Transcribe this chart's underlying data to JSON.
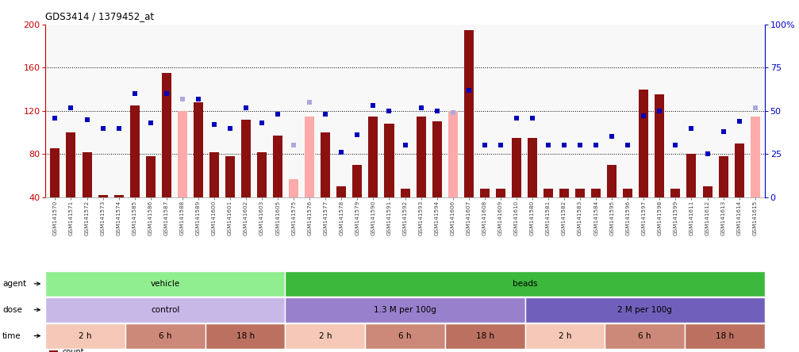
{
  "title": "GDS3414 / 1379452_at",
  "samples": [
    "GSM141570",
    "GSM141571",
    "GSM141572",
    "GSM141573",
    "GSM141574",
    "GSM141585",
    "GSM141586",
    "GSM141587",
    "GSM141588",
    "GSM141589",
    "GSM141600",
    "GSM141601",
    "GSM141602",
    "GSM141603",
    "GSM141605",
    "GSM141575",
    "GSM141576",
    "GSM141577",
    "GSM141578",
    "GSM141579",
    "GSM141590",
    "GSM141591",
    "GSM141592",
    "GSM141593",
    "GSM141594",
    "GSM141606",
    "GSM141607",
    "GSM141608",
    "GSM141609",
    "GSM141610",
    "GSM141580",
    "GSM141581",
    "GSM141582",
    "GSM141583",
    "GSM141584",
    "GSM141595",
    "GSM141596",
    "GSM141597",
    "GSM141598",
    "GSM141599",
    "GSM141611",
    "GSM141612",
    "GSM141613",
    "GSM141614",
    "GSM141615"
  ],
  "count_values": [
    85,
    100,
    82,
    42,
    42,
    125,
    78,
    155,
    120,
    128,
    82,
    78,
    112,
    82,
    97,
    57,
    115,
    100,
    50,
    70,
    115,
    108,
    48,
    115,
    110,
    120,
    195,
    48,
    48,
    95,
    95,
    48,
    48,
    48,
    48,
    70,
    48,
    140,
    135,
    48,
    80,
    50,
    78,
    90,
    115
  ],
  "rank_values": [
    46,
    52,
    45,
    40,
    40,
    60,
    43,
    60,
    57,
    57,
    42,
    40,
    52,
    43,
    48,
    30,
    55,
    48,
    26,
    36,
    53,
    50,
    30,
    52,
    50,
    49,
    62,
    30,
    30,
    46,
    46,
    30,
    30,
    30,
    30,
    35,
    30,
    47,
    50,
    30,
    40,
    25,
    38,
    44,
    52
  ],
  "absent_count": [
    false,
    false,
    false,
    false,
    false,
    false,
    false,
    false,
    true,
    false,
    false,
    false,
    false,
    false,
    false,
    true,
    true,
    false,
    false,
    false,
    false,
    false,
    false,
    false,
    false,
    true,
    false,
    false,
    false,
    false,
    false,
    false,
    false,
    false,
    false,
    false,
    false,
    false,
    false,
    false,
    false,
    false,
    false,
    false,
    true
  ],
  "absent_rank": [
    false,
    false,
    false,
    false,
    false,
    false,
    false,
    false,
    true,
    false,
    false,
    false,
    false,
    false,
    false,
    true,
    true,
    false,
    false,
    false,
    false,
    false,
    false,
    false,
    false,
    true,
    false,
    false,
    false,
    false,
    false,
    false,
    false,
    false,
    false,
    false,
    false,
    false,
    false,
    false,
    false,
    false,
    false,
    false,
    true
  ],
  "agent_groups": [
    {
      "label": "vehicle",
      "start": 0,
      "end": 14,
      "color": "#90EE90"
    },
    {
      "label": "beads",
      "start": 15,
      "end": 44,
      "color": "#3CB83C"
    }
  ],
  "dose_groups": [
    {
      "label": "control",
      "start": 0,
      "end": 14,
      "color": "#C8B8E8"
    },
    {
      "label": "1.3 M per 100g",
      "start": 15,
      "end": 29,
      "color": "#9880CC"
    },
    {
      "label": "2 M per 100g",
      "start": 30,
      "end": 44,
      "color": "#7060BB"
    }
  ],
  "time_groups": [
    {
      "label": "2 h",
      "start": 0,
      "end": 4,
      "color": "#F5C8B8"
    },
    {
      "label": "6 h",
      "start": 5,
      "end": 9,
      "color": "#CC8878"
    },
    {
      "label": "18 h",
      "start": 10,
      "end": 14,
      "color": "#BB7060"
    },
    {
      "label": "2 h",
      "start": 15,
      "end": 19,
      "color": "#F5C8B8"
    },
    {
      "label": "6 h",
      "start": 20,
      "end": 24,
      "color": "#CC8878"
    },
    {
      "label": "18 h",
      "start": 25,
      "end": 29,
      "color": "#BB7060"
    },
    {
      "label": "2 h",
      "start": 30,
      "end": 34,
      "color": "#F5C8B8"
    },
    {
      "label": "6 h",
      "start": 35,
      "end": 39,
      "color": "#CC8878"
    },
    {
      "label": "18 h",
      "start": 40,
      "end": 44,
      "color": "#BB7060"
    }
  ],
  "ylim_left": [
    40,
    200
  ],
  "ylim_right": [
    0,
    100
  ],
  "yticks_left": [
    40,
    80,
    120,
    160,
    200
  ],
  "yticks_right": [
    0,
    25,
    50,
    75,
    100
  ],
  "bar_color": "#8B1010",
  "absent_bar_color": "#FFAAAA",
  "rank_color": "#0000BB",
  "absent_rank_color": "#AAAADD",
  "plot_bg": "#F8F8F8"
}
